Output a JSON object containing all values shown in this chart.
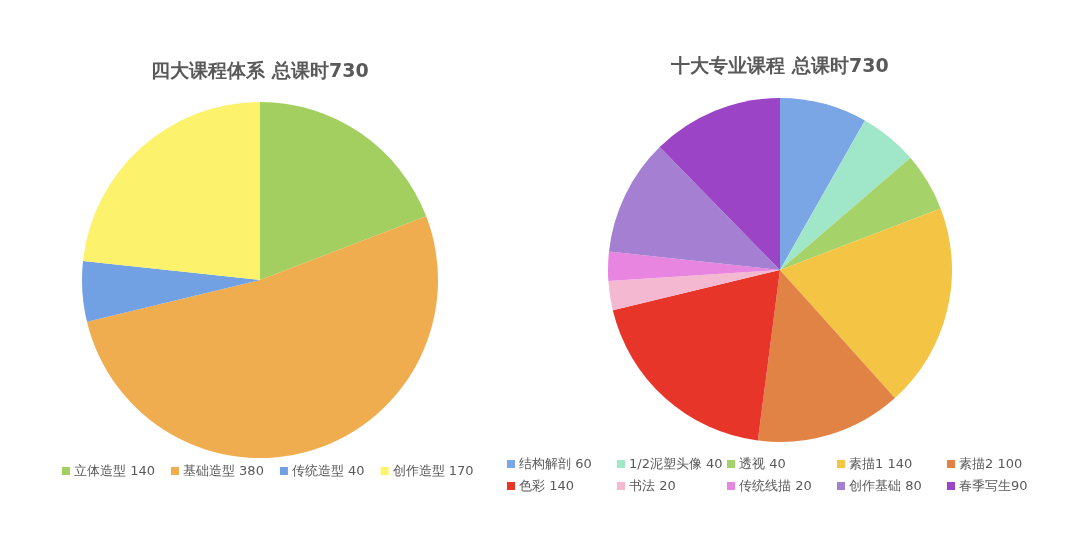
{
  "chart_data": [
    {
      "type": "pie",
      "title": "四大课程体系  总课时730",
      "categories": [
        "立体造型 140",
        "基础造型 380",
        "传统造型 40",
        "创作造型 170"
      ],
      "values": [
        140,
        380,
        40,
        170
      ],
      "colors": [
        "#a2cf60",
        "#f0ad4f",
        "#71a0e3",
        "#fdf26b"
      ],
      "legend": "bottom"
    },
    {
      "type": "pie",
      "title": "十大专业课程  总课时730",
      "categories": [
        "结构解剖 60",
        "1/2泥塑头像 40",
        "透视 40",
        "素描1 140",
        "素描2 100",
        "色彩 140",
        "书法 20",
        "传统线描 20",
        "创作基础 80",
        "春季写生90"
      ],
      "values": [
        60,
        40,
        40,
        140,
        100,
        140,
        20,
        20,
        80,
        90
      ],
      "colors": [
        "#7aa6e5",
        "#a0e6c8",
        "#a5d36a",
        "#f4c445",
        "#e18345",
        "#e8352a",
        "#f4b8d0",
        "#e785e0",
        "#a47fd2",
        "#9b44c6"
      ],
      "legend": "bottom"
    }
  ]
}
